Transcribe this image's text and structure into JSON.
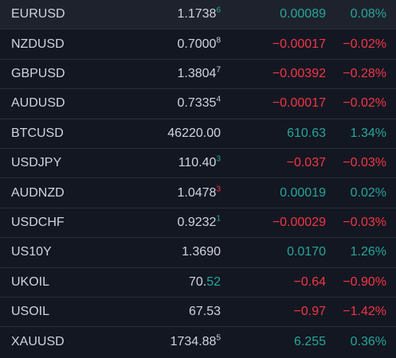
{
  "colors": {
    "background": "#131722",
    "text": "#d1d4dc",
    "positive": "#26a69a",
    "negative": "#f23645",
    "divider": "#2a2e39"
  },
  "watchlist": {
    "rows": [
      {
        "symbol": "EURUSD",
        "last_main": "1.1738",
        "last_hl": "",
        "last_sup": "6",
        "last_dir": "up",
        "change": "0.00089",
        "change_pct": "0.08%",
        "dir": "up"
      },
      {
        "symbol": "NZDUSD",
        "last_main": "0.7000",
        "last_hl": "",
        "last_sup": "8",
        "last_dir": "neutral",
        "change": "−0.00017",
        "change_pct": "−0.02%",
        "dir": "down"
      },
      {
        "symbol": "GBPUSD",
        "last_main": "1.3804",
        "last_hl": "",
        "last_sup": "7",
        "last_dir": "neutral",
        "change": "−0.00392",
        "change_pct": "−0.28%",
        "dir": "down"
      },
      {
        "symbol": "AUDUSD",
        "last_main": "0.7335",
        "last_hl": "",
        "last_sup": "4",
        "last_dir": "neutral",
        "change": "−0.00017",
        "change_pct": "−0.02%",
        "dir": "down"
      },
      {
        "symbol": "BTCUSD",
        "last_main": "46220.00",
        "last_hl": "",
        "last_sup": "",
        "last_dir": "neutral",
        "change": "610.63",
        "change_pct": "1.34%",
        "dir": "up"
      },
      {
        "symbol": "USDJPY",
        "last_main": "110.40",
        "last_hl": "",
        "last_sup": "3",
        "last_dir": "up",
        "change": "−0.037",
        "change_pct": "−0.03%",
        "dir": "down"
      },
      {
        "symbol": "AUDNZD",
        "last_main": "1.0478",
        "last_hl": "",
        "last_sup": "3",
        "last_dir": "down",
        "change": "0.00019",
        "change_pct": "0.02%",
        "dir": "up"
      },
      {
        "symbol": "USDCHF",
        "last_main": "0.9232",
        "last_hl": "",
        "last_sup": "1",
        "last_dir": "up",
        "change": "−0.00029",
        "change_pct": "−0.03%",
        "dir": "down"
      },
      {
        "symbol": "US10Y",
        "last_main": "1.3690",
        "last_hl": "",
        "last_sup": "",
        "last_dir": "neutral",
        "change": "0.0170",
        "change_pct": "1.26%",
        "dir": "up"
      },
      {
        "symbol": "UKOIL",
        "last_main": "70.",
        "last_hl": "52",
        "last_sup": "",
        "last_dir": "up",
        "change": "−0.64",
        "change_pct": "−0.90%",
        "dir": "down"
      },
      {
        "symbol": "USOIL",
        "last_main": "67.53",
        "last_hl": "",
        "last_sup": "",
        "last_dir": "neutral",
        "change": "−0.97",
        "change_pct": "−1.42%",
        "dir": "down"
      },
      {
        "symbol": "XAUUSD",
        "last_main": "1734.88",
        "last_hl": "",
        "last_sup": "5",
        "last_dir": "neutral",
        "change": "6.255",
        "change_pct": "0.36%",
        "dir": "up"
      }
    ]
  }
}
